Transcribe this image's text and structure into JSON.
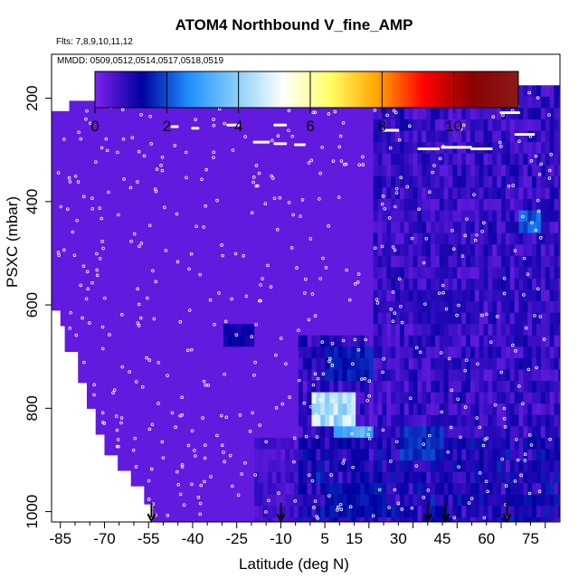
{
  "chart_data": {
    "type": "heatmap",
    "title": "ATOM4 Northbound V_fine_AMP",
    "flights_label": "Flts: 7,8,9,10,11,12",
    "dates_label": "MMDD: 0509,0512,0514,0517,0518,0519",
    "xlabel": "Latitude (deg N)",
    "ylabel": "PSXC (mbar)",
    "xlim": [
      -88,
      85
    ],
    "ylim": [
      1020,
      115
    ],
    "x_ticks": [
      "-85",
      "-70",
      "-55",
      "-40",
      "-25",
      "-10",
      "5",
      "15",
      "30",
      "45",
      "60",
      "75"
    ],
    "y_ticks": [
      "200",
      "400",
      "600",
      "800",
      "1000"
    ],
    "colorbar": {
      "min": 0,
      "max": 11.8,
      "ticks": [
        "0",
        "2",
        "4",
        "6",
        "8",
        "10"
      ],
      "colors": [
        "#7e22f0",
        "#0000a0",
        "#1e90ff",
        "#87cefa",
        "#ffffff",
        "#ffff66",
        "#ffa500",
        "#ff0000",
        "#8b0000",
        "#8b1a1a"
      ]
    },
    "background_value": 0.3,
    "features": [
      {
        "lat_range": [
          0,
          15
        ],
        "p_range": [
          765,
          815
        ],
        "value": 4.6
      },
      {
        "lat_range": [
          8,
          20
        ],
        "p_range": [
          815,
          855
        ],
        "value": 3.5
      },
      {
        "lat_range": [
          -30,
          -20
        ],
        "p_range": [
          630,
          680
        ],
        "value": 1.2
      },
      {
        "lat_range": [
          5,
          20
        ],
        "p_range": [
          680,
          730
        ],
        "value": 1.6
      },
      {
        "lat_range": [
          30,
          45
        ],
        "p_range": [
          820,
          900
        ],
        "value": 1.8
      },
      {
        "lat_range": [
          70,
          78
        ],
        "p_range": [
          400,
          450
        ],
        "value": 2.2
      },
      {
        "lat_range": [
          35,
          50
        ],
        "p_range": [
          550,
          620
        ],
        "value": 1.0
      },
      {
        "lat_range": [
          5,
          25
        ],
        "p_range": [
          930,
          990
        ],
        "value": 1.5
      }
    ],
    "flight_track_markers_lat": [
      -54,
      -10,
      40,
      46,
      67
    ]
  }
}
